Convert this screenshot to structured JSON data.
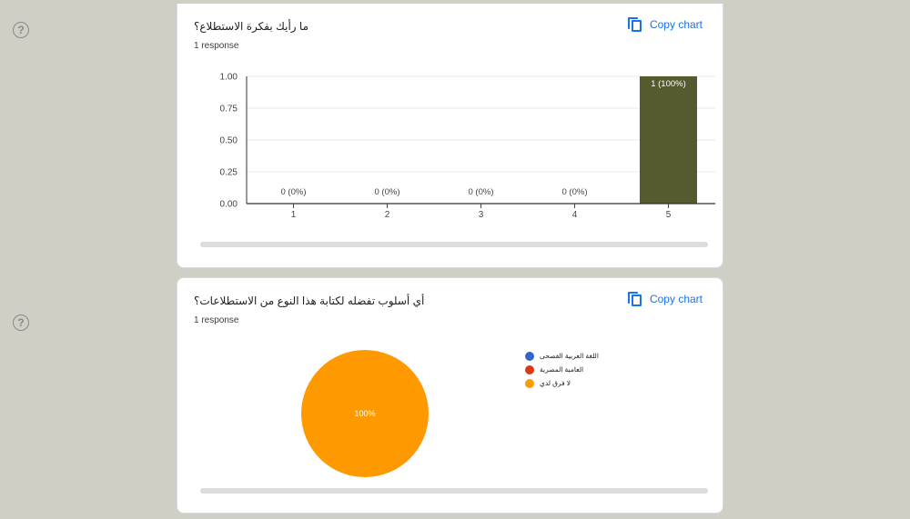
{
  "copy_label": "Copy chart",
  "questions": [
    {
      "title": "ما رأيك بفكرة الاستطلاع؟",
      "responses": "1 response",
      "chart_data": {
        "type": "bar",
        "categories": [
          "1",
          "2",
          "3",
          "4",
          "5"
        ],
        "values": [
          0,
          0,
          0,
          0,
          1
        ],
        "data_labels": [
          "0 (0%)",
          "0 (0%)",
          "0 (0%)",
          "0 (0%)",
          "1 (100%)"
        ],
        "yticks": [
          "0.00",
          "0.25",
          "0.50",
          "0.75",
          "1.00"
        ],
        "ylim": [
          0,
          1
        ],
        "bar_color": "#575a2e",
        "grid": true
      }
    },
    {
      "title": "أي أسلوب تفضله لكتابة هذا النوع من الاستطلاعات؟",
      "responses": "1 response",
      "chart_data": {
        "type": "pie",
        "labels": [
          "اللغة العربية الفصحى",
          "العامية المصرية",
          "لا فرق لدي"
        ],
        "values": [
          0,
          0,
          100
        ],
        "slice_label": "100%",
        "colors": [
          "#3366cc",
          "#dc3912",
          "#ff9900"
        ],
        "legend_position": "right"
      }
    }
  ]
}
